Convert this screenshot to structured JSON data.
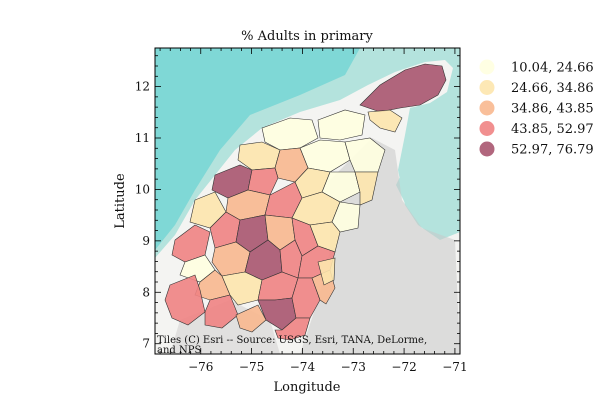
{
  "title": "% Adults in primary",
  "xlabel": "Longitude",
  "ylabel": "Latitude",
  "attribution": [
    "Tiles (C) Esri -- Source: USGS, Esri, TANA, DeLorme,",
    "and NPS"
  ],
  "colors": {
    "sea": "#b4e3dd",
    "sea_shallow": "#7fd8d6",
    "land": "#f4f4f2",
    "relief": "#c9c8c8",
    "border": "#333333"
  },
  "legend": [
    {
      "label": "10.04, 24.66",
      "color": "#ffffe0"
    },
    {
      "label": "24.66, 34.86",
      "color": "#fde5ad"
    },
    {
      "label": "34.86, 43.85",
      "color": "#f8b88f"
    },
    {
      "label": "43.85, 52.97",
      "color": "#ef8383"
    },
    {
      "label": "52.97, 76.79",
      "color": "#a9556f"
    }
  ],
  "chart_data": {
    "type": "choropleth",
    "title": "% Adults in primary",
    "xlabel": "Longitude",
    "ylabel": "Latitude",
    "xlim": [
      -76.9,
      -70.9
    ],
    "ylim": [
      6.8,
      12.75
    ],
    "xticks": [
      -76,
      -75,
      -74,
      -73,
      -72,
      -71
    ],
    "yticks": [
      7,
      8,
      9,
      10,
      11,
      12
    ],
    "xtick_labels": [
      "−76",
      "−75",
      "−74",
      "−73",
      "−72",
      "−71"
    ],
    "ytick_labels": [
      "7",
      "8",
      "9",
      "10",
      "11",
      "12"
    ],
    "legend_placement": "right, outside plot",
    "classes": [
      "10.04, 24.66",
      "24.66, 34.86",
      "34.86, 43.85",
      "43.85, 52.97",
      "52.97, 76.79"
    ]
  }
}
